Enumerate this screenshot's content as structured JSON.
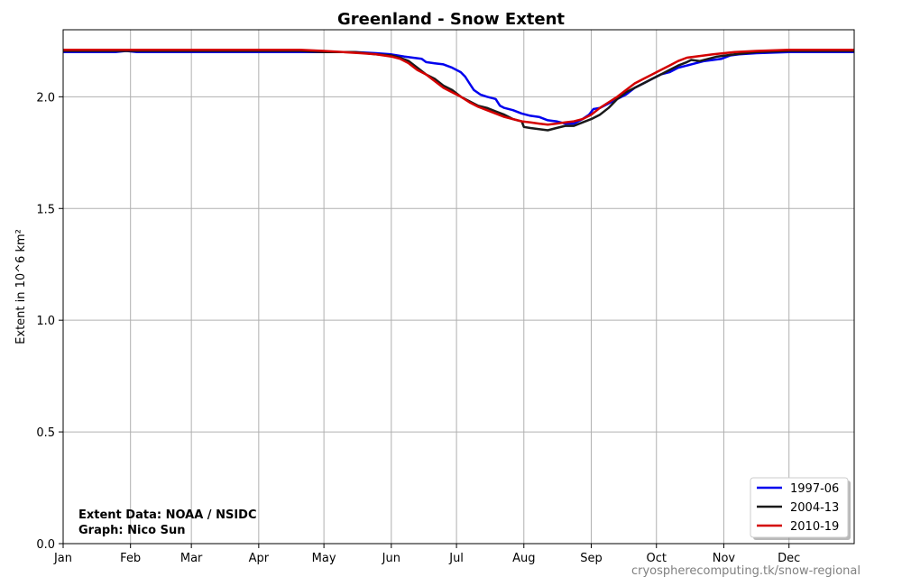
{
  "chart_data": {
    "type": "line",
    "title": "Greenland - Snow Extent",
    "ylabel": "Extent in 10^6 km²",
    "xlabel": "",
    "xlim": [
      1,
      365
    ],
    "ylim": [
      0,
      2.3
    ],
    "grid": true,
    "legend_position": "bottom-right",
    "month_ticks": [
      {
        "label": "Jan",
        "day": 1
      },
      {
        "label": "Feb",
        "day": 32
      },
      {
        "label": "Mar",
        "day": 60
      },
      {
        "label": "Apr",
        "day": 91
      },
      {
        "label": "May",
        "day": 121
      },
      {
        "label": "Jun",
        "day": 152
      },
      {
        "label": "Jul",
        "day": 182
      },
      {
        "label": "Aug",
        "day": 213
      },
      {
        "label": "Sep",
        "day": 244
      },
      {
        "label": "Oct",
        "day": 274
      },
      {
        "label": "Nov",
        "day": 305
      },
      {
        "label": "Dec",
        "day": 335
      }
    ],
    "y_ticks": [
      {
        "label": "0.0",
        "value": 0.0
      },
      {
        "label": "0.5",
        "value": 0.5
      },
      {
        "label": "1.0",
        "value": 1.0
      },
      {
        "label": "1.5",
        "value": 1.5
      },
      {
        "label": "2.0",
        "value": 2.0
      }
    ],
    "series": [
      {
        "name": "1997-06",
        "color": "#0000ee",
        "points": [
          [
            1,
            2.2
          ],
          [
            25,
            2.2
          ],
          [
            30,
            2.205
          ],
          [
            35,
            2.2
          ],
          [
            60,
            2.2
          ],
          [
            100,
            2.2
          ],
          [
            121,
            2.2
          ],
          [
            135,
            2.2
          ],
          [
            145,
            2.195
          ],
          [
            152,
            2.19
          ],
          [
            158,
            2.18
          ],
          [
            162,
            2.175
          ],
          [
            166,
            2.17
          ],
          [
            168,
            2.155
          ],
          [
            172,
            2.15
          ],
          [
            176,
            2.145
          ],
          [
            180,
            2.13
          ],
          [
            184,
            2.11
          ],
          [
            186,
            2.09
          ],
          [
            188,
            2.06
          ],
          [
            190,
            2.03
          ],
          [
            193,
            2.01
          ],
          [
            196,
            2.0
          ],
          [
            200,
            1.99
          ],
          [
            202,
            1.96
          ],
          [
            204,
            1.95
          ],
          [
            208,
            1.94
          ],
          [
            212,
            1.925
          ],
          [
            216,
            1.915
          ],
          [
            220,
            1.91
          ],
          [
            224,
            1.895
          ],
          [
            228,
            1.89
          ],
          [
            232,
            1.88
          ],
          [
            236,
            1.88
          ],
          [
            240,
            1.9
          ],
          [
            243,
            1.92
          ],
          [
            245,
            1.945
          ],
          [
            248,
            1.95
          ],
          [
            252,
            1.97
          ],
          [
            256,
            1.99
          ],
          [
            260,
            2.01
          ],
          [
            264,
            2.04
          ],
          [
            268,
            2.06
          ],
          [
            272,
            2.08
          ],
          [
            276,
            2.1
          ],
          [
            280,
            2.11
          ],
          [
            284,
            2.13
          ],
          [
            288,
            2.14
          ],
          [
            292,
            2.15
          ],
          [
            296,
            2.16
          ],
          [
            300,
            2.165
          ],
          [
            304,
            2.17
          ],
          [
            308,
            2.185
          ],
          [
            312,
            2.19
          ],
          [
            320,
            2.195
          ],
          [
            335,
            2.2
          ],
          [
            365,
            2.2
          ]
        ]
      },
      {
        "name": "2004-13",
        "color": "#1a1a1a",
        "points": [
          [
            1,
            2.205
          ],
          [
            60,
            2.205
          ],
          [
            110,
            2.205
          ],
          [
            121,
            2.2
          ],
          [
            135,
            2.2
          ],
          [
            145,
            2.19
          ],
          [
            152,
            2.185
          ],
          [
            156,
            2.175
          ],
          [
            160,
            2.16
          ],
          [
            164,
            2.13
          ],
          [
            168,
            2.1
          ],
          [
            172,
            2.08
          ],
          [
            176,
            2.05
          ],
          [
            180,
            2.03
          ],
          [
            184,
            2.0
          ],
          [
            188,
            1.98
          ],
          [
            192,
            1.96
          ],
          [
            196,
            1.95
          ],
          [
            200,
            1.935
          ],
          [
            204,
            1.92
          ],
          [
            208,
            1.9
          ],
          [
            210,
            1.895
          ],
          [
            212,
            1.89
          ],
          [
            213,
            1.865
          ],
          [
            216,
            1.86
          ],
          [
            220,
            1.855
          ],
          [
            224,
            1.85
          ],
          [
            228,
            1.86
          ],
          [
            232,
            1.87
          ],
          [
            236,
            1.87
          ],
          [
            240,
            1.885
          ],
          [
            244,
            1.9
          ],
          [
            248,
            1.92
          ],
          [
            252,
            1.95
          ],
          [
            256,
            1.99
          ],
          [
            260,
            2.02
          ],
          [
            264,
            2.04
          ],
          [
            268,
            2.06
          ],
          [
            272,
            2.08
          ],
          [
            276,
            2.1
          ],
          [
            280,
            2.12
          ],
          [
            284,
            2.14
          ],
          [
            288,
            2.155
          ],
          [
            290,
            2.165
          ],
          [
            294,
            2.16
          ],
          [
            298,
            2.17
          ],
          [
            302,
            2.18
          ],
          [
            306,
            2.185
          ],
          [
            310,
            2.19
          ],
          [
            320,
            2.2
          ],
          [
            335,
            2.205
          ],
          [
            365,
            2.205
          ]
        ]
      },
      {
        "name": "2010-19",
        "color": "#d40000",
        "points": [
          [
            1,
            2.21
          ],
          [
            60,
            2.21
          ],
          [
            110,
            2.21
          ],
          [
            121,
            2.205
          ],
          [
            130,
            2.2
          ],
          [
            138,
            2.195
          ],
          [
            145,
            2.19
          ],
          [
            152,
            2.18
          ],
          [
            156,
            2.17
          ],
          [
            160,
            2.15
          ],
          [
            164,
            2.12
          ],
          [
            168,
            2.1
          ],
          [
            172,
            2.07
          ],
          [
            176,
            2.04
          ],
          [
            180,
            2.02
          ],
          [
            184,
            2.0
          ],
          [
            188,
            1.975
          ],
          [
            192,
            1.955
          ],
          [
            196,
            1.94
          ],
          [
            200,
            1.925
          ],
          [
            204,
            1.91
          ],
          [
            208,
            1.9
          ],
          [
            212,
            1.89
          ],
          [
            216,
            1.885
          ],
          [
            220,
            1.88
          ],
          [
            224,
            1.875
          ],
          [
            228,
            1.88
          ],
          [
            232,
            1.885
          ],
          [
            236,
            1.89
          ],
          [
            240,
            1.9
          ],
          [
            244,
            1.92
          ],
          [
            248,
            1.95
          ],
          [
            252,
            1.975
          ],
          [
            256,
            2.0
          ],
          [
            260,
            2.03
          ],
          [
            264,
            2.06
          ],
          [
            268,
            2.08
          ],
          [
            272,
            2.1
          ],
          [
            276,
            2.12
          ],
          [
            280,
            2.14
          ],
          [
            284,
            2.16
          ],
          [
            288,
            2.175
          ],
          [
            292,
            2.18
          ],
          [
            296,
            2.185
          ],
          [
            300,
            2.19
          ],
          [
            305,
            2.195
          ],
          [
            310,
            2.2
          ],
          [
            320,
            2.205
          ],
          [
            335,
            2.21
          ],
          [
            365,
            2.21
          ]
        ]
      }
    ]
  },
  "annotations": {
    "source_line1": "Extent Data: NOAA / NSIDC",
    "source_line2": "Graph: Nico Sun",
    "credit": "cryospherecomputing.tk/snow-regional"
  }
}
